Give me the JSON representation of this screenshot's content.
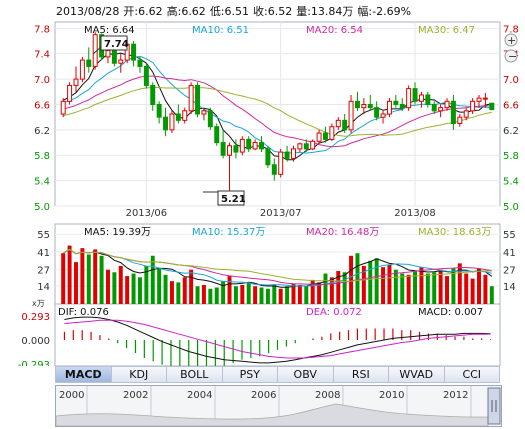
{
  "header": {
    "date": "2013/08/28",
    "open": "开:6.62",
    "high": "高:6.62",
    "low": "低:6.51",
    "close": "收:6.52",
    "volume": "量:13.84万",
    "change": "幅:-2.69%"
  },
  "colors": {
    "up": "#e00000",
    "down": "#009a00",
    "ma5": "#111111",
    "ma10": "#1aa6d9",
    "ma20": "#d02a9a",
    "ma30": "#9ab22c",
    "dif": "#111111",
    "dea": "#cc22cc"
  },
  "price_legend": {
    "ma5": "MA5: 6.64",
    "ma10": "MA10: 6.51",
    "ma20": "MA20: 6.54",
    "ma30": "MA30: 6.47"
  },
  "volume_legend": {
    "ma5": "MA5: 19.39万",
    "ma10": "MA10: 15.37万",
    "ma20": "MA20: 16.48万",
    "ma30": "MA30: 18.63万"
  },
  "macd_legend": {
    "dif": "DIF: 0.076",
    "dea": "DEA: 0.072",
    "macd": "MACD: 0.007"
  },
  "volume_unit": "x万",
  "annotations": {
    "high": "7.74",
    "low": "5.21"
  },
  "tabs": [
    "MACD",
    "KDJ",
    "BOLL",
    "PSY",
    "OBV",
    "RSI",
    "WVAD",
    "CCI"
  ],
  "active_tab": "MACD",
  "timeline_labels": [
    "2000",
    "2002",
    "2004",
    "2006",
    "2008",
    "2010",
    "2012"
  ],
  "chart_data": [
    {
      "type": "candlestick",
      "ylim": [
        5.0,
        7.9
      ],
      "yticks": [
        "7.8",
        "7.4",
        "7.0",
        "6.6",
        "6.2",
        "5.8",
        "5.4",
        "5.0"
      ],
      "xlabels": [
        "2013/06",
        "2013/07",
        "2013/08"
      ],
      "candles": [
        [
          6.45,
          6.7,
          6.4,
          6.65
        ],
        [
          6.65,
          6.95,
          6.6,
          6.9
        ],
        [
          6.9,
          7.2,
          6.8,
          7.0
        ],
        [
          7.0,
          7.35,
          6.95,
          7.3
        ],
        [
          7.3,
          7.5,
          7.1,
          7.2
        ],
        [
          7.2,
          7.74,
          7.15,
          7.7
        ],
        [
          7.7,
          7.72,
          7.3,
          7.35
        ],
        [
          7.35,
          7.5,
          7.25,
          7.45
        ],
        [
          7.45,
          7.55,
          7.2,
          7.25
        ],
        [
          7.25,
          7.4,
          7.1,
          7.3
        ],
        [
          7.3,
          7.65,
          7.25,
          7.55
        ],
        [
          7.55,
          7.6,
          7.2,
          7.3
        ],
        [
          7.3,
          7.35,
          7.1,
          7.2
        ],
        [
          7.2,
          7.25,
          6.85,
          6.9
        ],
        [
          6.9,
          6.95,
          6.5,
          6.6
        ],
        [
          6.6,
          6.65,
          6.3,
          6.4
        ],
        [
          6.4,
          6.55,
          6.1,
          6.2
        ],
        [
          6.2,
          6.5,
          6.15,
          6.45
        ],
        [
          6.45,
          6.6,
          6.3,
          6.35
        ],
        [
          6.35,
          6.55,
          6.3,
          6.5
        ],
        [
          6.5,
          6.95,
          6.45,
          6.9
        ],
        [
          6.9,
          6.95,
          6.4,
          6.45
        ],
        [
          6.45,
          6.55,
          6.35,
          6.5
        ],
        [
          6.5,
          6.55,
          6.2,
          6.25
        ],
        [
          6.25,
          6.3,
          5.95,
          6.0
        ],
        [
          6.0,
          6.2,
          5.75,
          5.8
        ],
        [
          5.8,
          6.0,
          5.21,
          5.95
        ],
        [
          5.95,
          6.05,
          5.75,
          5.85
        ],
        [
          5.85,
          6.1,
          5.8,
          6.05
        ],
        [
          6.05,
          6.1,
          5.85,
          5.9
        ],
        [
          5.9,
          6.05,
          5.88,
          6.0
        ],
        [
          6.0,
          6.1,
          5.85,
          5.9
        ],
        [
          5.9,
          5.95,
          5.6,
          5.65
        ],
        [
          5.65,
          5.75,
          5.4,
          5.5
        ],
        [
          5.5,
          5.9,
          5.45,
          5.85
        ],
        [
          5.85,
          5.95,
          5.7,
          5.75
        ],
        [
          5.75,
          5.95,
          5.7,
          5.9
        ],
        [
          5.9,
          6.0,
          5.85,
          5.98
        ],
        [
          5.98,
          6.05,
          5.85,
          5.9
        ],
        [
          5.9,
          6.05,
          5.88,
          6.02
        ],
        [
          6.02,
          6.2,
          5.98,
          6.15
        ],
        [
          6.15,
          6.25,
          6.0,
          6.05
        ],
        [
          6.05,
          6.3,
          6.02,
          6.25
        ],
        [
          6.25,
          6.4,
          6.2,
          6.35
        ],
        [
          6.35,
          6.45,
          6.15,
          6.2
        ],
        [
          6.2,
          6.75,
          6.15,
          6.65
        ],
        [
          6.65,
          6.8,
          6.5,
          6.55
        ],
        [
          6.55,
          6.7,
          6.45,
          6.6
        ],
        [
          6.6,
          6.75,
          6.5,
          6.55
        ],
        [
          6.55,
          6.65,
          6.35,
          6.4
        ],
        [
          6.4,
          6.5,
          6.3,
          6.45
        ],
        [
          6.45,
          6.7,
          6.4,
          6.65
        ],
        [
          6.65,
          6.75,
          6.55,
          6.6
        ],
        [
          6.6,
          6.7,
          6.5,
          6.55
        ],
        [
          6.55,
          6.9,
          6.5,
          6.85
        ],
        [
          6.85,
          6.95,
          6.6,
          6.65
        ],
        [
          6.65,
          6.8,
          6.55,
          6.75
        ],
        [
          6.75,
          6.8,
          6.55,
          6.6
        ],
        [
          6.6,
          6.65,
          6.45,
          6.5
        ],
        [
          6.5,
          6.6,
          6.4,
          6.55
        ],
        [
          6.55,
          6.7,
          6.5,
          6.65
        ],
        [
          6.65,
          6.75,
          6.2,
          6.3
        ],
        [
          6.3,
          6.45,
          6.25,
          6.4
        ],
        [
          6.4,
          6.55,
          6.35,
          6.5
        ],
        [
          6.5,
          6.7,
          6.45,
          6.65
        ],
        [
          6.65,
          6.75,
          6.55,
          6.7
        ],
        [
          6.7,
          6.78,
          6.55,
          6.7
        ],
        [
          6.62,
          6.62,
          6.51,
          6.52
        ]
      ]
    },
    {
      "type": "bar",
      "ylim": [
        0,
        52
      ],
      "yticks": [
        "55",
        "41",
        "27",
        "14"
      ],
      "values": [
        40,
        46,
        33,
        44,
        39,
        43,
        38,
        27,
        25,
        30,
        22,
        24,
        21,
        30,
        38,
        28,
        23,
        18,
        17,
        21,
        27,
        14,
        15,
        12,
        13,
        18,
        22,
        14,
        15,
        17,
        14,
        13,
        12,
        15,
        12,
        14,
        16,
        15,
        14,
        19,
        17,
        24,
        21,
        26,
        25,
        38,
        40,
        30,
        34,
        36,
        29,
        31,
        27,
        24,
        23,
        26,
        29,
        24,
        25,
        27,
        22,
        28,
        32,
        24,
        20,
        28,
        23,
        14
      ]
    },
    {
      "type": "line",
      "ylim": [
        -0.293,
        0.293
      ],
      "yticks": [
        "0.293",
        "0.000",
        "-0.293"
      ],
      "series": [
        {
          "name": "DIF",
          "values": [
            0.25,
            0.27,
            0.28,
            0.28,
            0.27,
            0.25,
            0.22,
            0.18,
            0.13,
            0.08,
            0.03,
            -0.02,
            -0.06,
            -0.1,
            -0.14,
            -0.17,
            -0.2,
            -0.22,
            -0.24,
            -0.25,
            -0.26,
            -0.27,
            -0.28,
            -0.28,
            -0.27,
            -0.26,
            -0.24,
            -0.22,
            -0.2,
            -0.18,
            -0.15,
            -0.12,
            -0.09,
            -0.06,
            -0.04,
            -0.02,
            0.0,
            0.02,
            0.03,
            0.04,
            0.05,
            0.06,
            0.07,
            0.07,
            0.07,
            0.08,
            0.08,
            0.08,
            0.076
          ]
        },
        {
          "name": "DEA",
          "values": [
            0.2,
            0.21,
            0.22,
            0.23,
            0.24,
            0.24,
            0.24,
            0.23,
            0.21,
            0.19,
            0.16,
            0.13,
            0.1,
            0.07,
            0.04,
            0.01,
            -0.02,
            -0.05,
            -0.08,
            -0.11,
            -0.14,
            -0.16,
            -0.18,
            -0.2,
            -0.21,
            -0.22,
            -0.22,
            -0.22,
            -0.21,
            -0.2,
            -0.19,
            -0.17,
            -0.15,
            -0.13,
            -0.11,
            -0.09,
            -0.07,
            -0.05,
            -0.03,
            -0.02,
            0.0,
            0.02,
            0.03,
            0.04,
            0.05,
            0.06,
            0.07,
            0.07,
            0.072
          ]
        }
      ]
    }
  ]
}
